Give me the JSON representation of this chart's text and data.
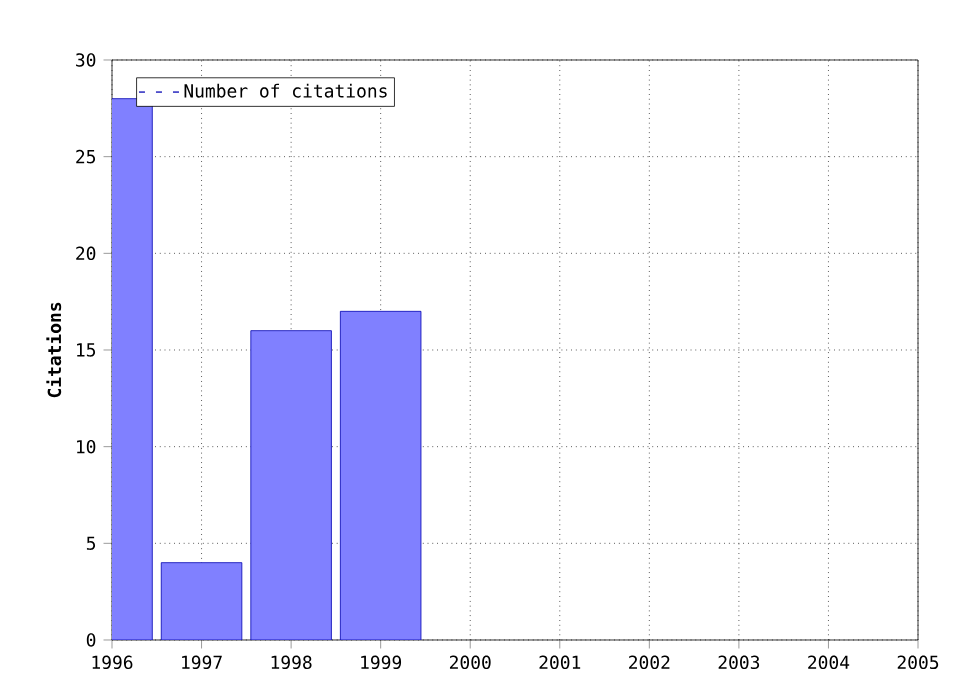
{
  "chart_data": {
    "type": "bar",
    "ylabel": "Citations",
    "x": [
      1996,
      1997,
      1998,
      1999
    ],
    "series": [
      {
        "name": "Number of citations",
        "color": "#8080ff",
        "values": [
          28,
          4,
          16,
          17
        ]
      }
    ],
    "xlim": [
      1996,
      2005
    ],
    "xticks": [
      1996,
      1997,
      1998,
      1999,
      2000,
      2001,
      2002,
      2003,
      2004,
      2005
    ],
    "ylim": [
      0,
      30
    ],
    "yticks": [
      0,
      5,
      10,
      15,
      20,
      25,
      30
    ],
    "grid": true,
    "legend": "top left"
  }
}
